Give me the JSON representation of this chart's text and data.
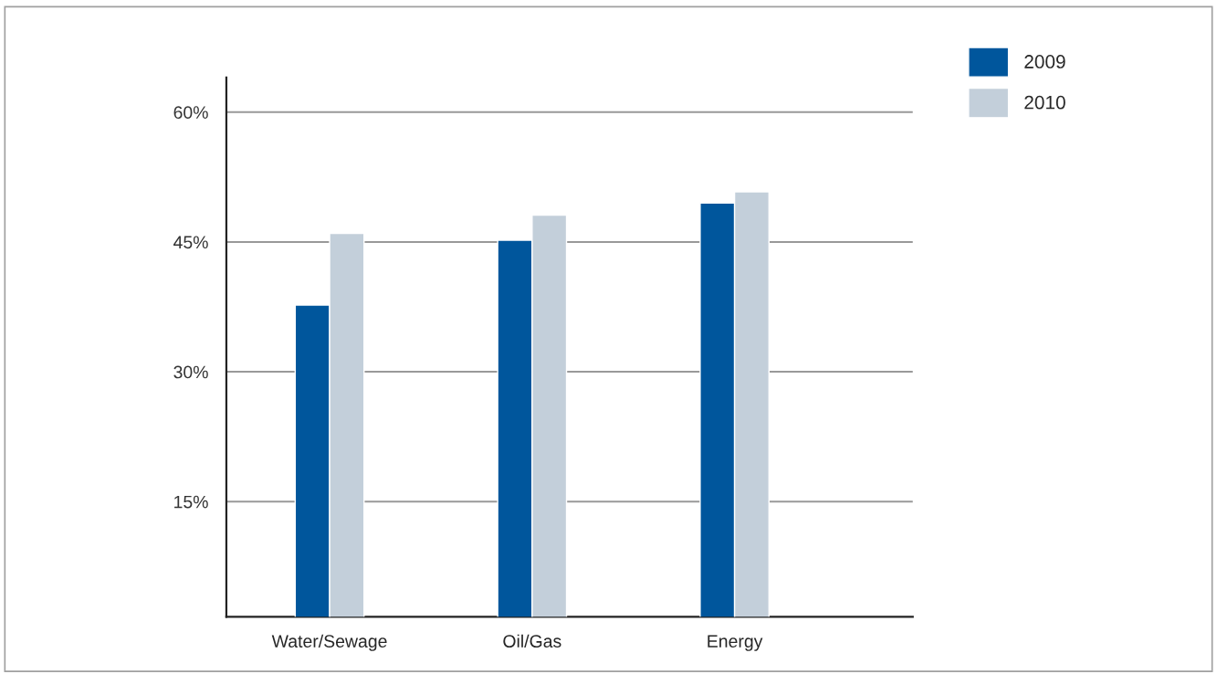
{
  "chart_data": {
    "type": "bar",
    "categories": [
      "Water/Sewage",
      "Oil/Gas",
      "Energy"
    ],
    "series": [
      {
        "name": "2009",
        "color": "#00569c",
        "values": [
          37.7,
          45.2,
          49.5
        ]
      },
      {
        "name": "2010",
        "color": "#c3cfda",
        "values": [
          46.0,
          48.1,
          50.8
        ]
      }
    ],
    "ylim": [
      1.7,
      64
    ],
    "yticks": [
      {
        "value": 15,
        "label": "15%"
      },
      {
        "value": 30,
        "label": "30%"
      },
      {
        "value": 45,
        "label": "45%"
      },
      {
        "value": 60,
        "label": "60%"
      }
    ],
    "grid": "y",
    "legend": "top right"
  }
}
